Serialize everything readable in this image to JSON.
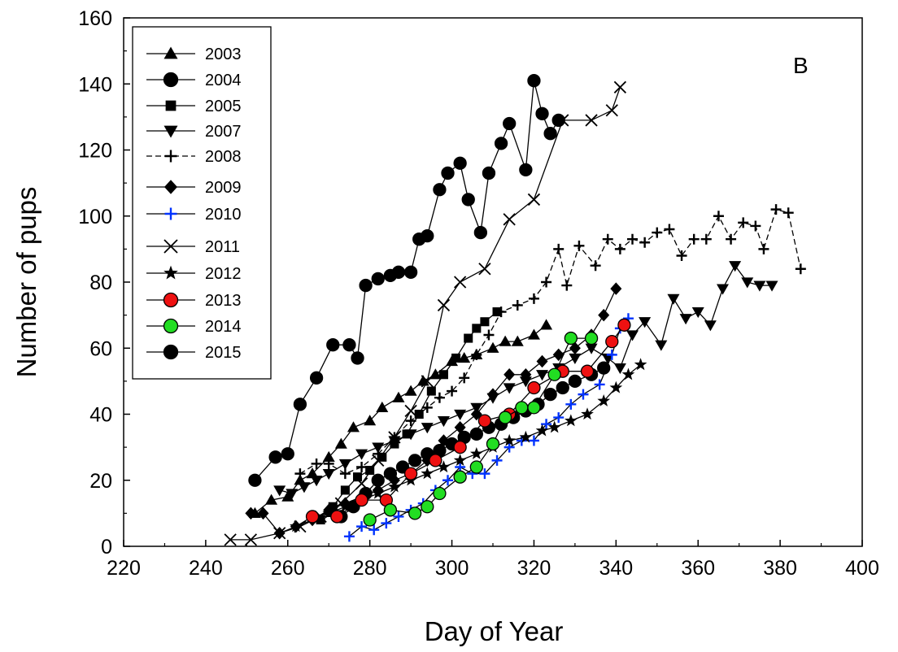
{
  "chart_data": {
    "type": "scatter",
    "title": "",
    "panel_label": "B",
    "xlabel": "Day of Year",
    "ylabel": "Number of pups",
    "xlim": [
      220,
      400
    ],
    "ylim": [
      0,
      160
    ],
    "x_ticks": [
      "220",
      "240",
      "260",
      "280",
      "300",
      "320",
      "340",
      "360",
      "380",
      "400"
    ],
    "y_ticks": [
      "0",
      "20",
      "40",
      "60",
      "80",
      "100",
      "120",
      "140",
      "160"
    ],
    "grid": false,
    "legend_position": "top-left",
    "series": [
      {
        "name": "2003",
        "marker": "triangle-up",
        "color": "#000000",
        "line": "solid",
        "points": [
          [
            252,
            10
          ],
          [
            256,
            14
          ],
          [
            260,
            15
          ],
          [
            263,
            20
          ],
          [
            266,
            22
          ],
          [
            270,
            27
          ],
          [
            273,
            31
          ],
          [
            276,
            36
          ],
          [
            280,
            38
          ],
          [
            283,
            42
          ],
          [
            287,
            45
          ],
          [
            290,
            47
          ],
          [
            293,
            50
          ],
          [
            296,
            52
          ],
          [
            300,
            56
          ],
          [
            303,
            57
          ],
          [
            306,
            58
          ],
          [
            310,
            60
          ],
          [
            313,
            62
          ],
          [
            316,
            62
          ],
          [
            320,
            64
          ],
          [
            323,
            67
          ]
        ]
      },
      {
        "name": "2004",
        "marker": "circle",
        "color": "#000000",
        "line": "solid",
        "points": [
          [
            273,
            9
          ],
          [
            276,
            12
          ],
          [
            279,
            16
          ],
          [
            282,
            20
          ],
          [
            285,
            22
          ],
          [
            288,
            24
          ],
          [
            291,
            26
          ],
          [
            294,
            28
          ],
          [
            297,
            29
          ],
          [
            300,
            31
          ],
          [
            303,
            33
          ],
          [
            306,
            34
          ],
          [
            309,
            36
          ],
          [
            312,
            37
          ],
          [
            315,
            39
          ],
          [
            318,
            41
          ],
          [
            321,
            43
          ],
          [
            324,
            46
          ],
          [
            327,
            48
          ],
          [
            330,
            50
          ],
          [
            334,
            52
          ],
          [
            337,
            54
          ]
        ]
      },
      {
        "name": "2005",
        "marker": "square",
        "color": "#000000",
        "line": "solid",
        "points": [
          [
            268,
            8
          ],
          [
            271,
            12
          ],
          [
            274,
            17
          ],
          [
            277,
            21
          ],
          [
            280,
            23
          ],
          [
            283,
            27
          ],
          [
            286,
            31
          ],
          [
            289,
            34
          ],
          [
            292,
            40
          ],
          [
            295,
            47
          ],
          [
            298,
            52
          ],
          [
            301,
            57
          ],
          [
            304,
            63
          ],
          [
            306,
            66
          ],
          [
            308,
            68
          ],
          [
            311,
            71
          ]
        ]
      },
      {
        "name": "2007",
        "marker": "triangle-down",
        "color": "#000000",
        "line": "solid",
        "points": [
          [
            258,
            17
          ],
          [
            261,
            16
          ],
          [
            264,
            18
          ],
          [
            267,
            20
          ],
          [
            270,
            22
          ],
          [
            274,
            25
          ],
          [
            278,
            28
          ],
          [
            282,
            30
          ],
          [
            286,
            32
          ],
          [
            290,
            34
          ],
          [
            294,
            36
          ],
          [
            298,
            38
          ],
          [
            302,
            40
          ],
          [
            306,
            42
          ],
          [
            310,
            45
          ],
          [
            314,
            48
          ],
          [
            318,
            50
          ],
          [
            322,
            52
          ],
          [
            326,
            54
          ],
          [
            330,
            57
          ],
          [
            334,
            60
          ],
          [
            338,
            57
          ],
          [
            341,
            54
          ],
          [
            344,
            64
          ],
          [
            347,
            68
          ],
          [
            351,
            61
          ],
          [
            354,
            75
          ],
          [
            357,
            69
          ],
          [
            360,
            71
          ],
          [
            363,
            67
          ],
          [
            366,
            78
          ],
          [
            369,
            85
          ],
          [
            372,
            80
          ],
          [
            375,
            79
          ],
          [
            378,
            79
          ]
        ]
      },
      {
        "name": "2008",
        "marker": "plus",
        "color": "#000000",
        "line": "dashed",
        "points": [
          [
            263,
            22
          ],
          [
            267,
            25
          ],
          [
            270,
            25
          ],
          [
            274,
            22
          ],
          [
            278,
            24
          ],
          [
            282,
            28
          ],
          [
            286,
            33
          ],
          [
            290,
            38
          ],
          [
            294,
            42
          ],
          [
            297,
            45
          ],
          [
            300,
            47
          ],
          [
            303,
            51
          ],
          [
            306,
            58
          ],
          [
            309,
            64
          ],
          [
            312,
            71
          ],
          [
            316,
            73
          ],
          [
            320,
            75
          ],
          [
            323,
            80
          ],
          [
            326,
            90
          ],
          [
            328,
            79
          ],
          [
            331,
            91
          ],
          [
            335,
            85
          ],
          [
            338,
            93
          ],
          [
            341,
            90
          ],
          [
            344,
            93
          ],
          [
            347,
            92
          ],
          [
            350,
            95
          ],
          [
            353,
            96
          ],
          [
            356,
            88
          ],
          [
            359,
            93
          ],
          [
            362,
            93
          ],
          [
            365,
            100
          ],
          [
            368,
            93
          ],
          [
            371,
            98
          ],
          [
            374,
            97
          ],
          [
            376,
            90
          ],
          [
            379,
            102
          ],
          [
            382,
            101
          ],
          [
            385,
            84
          ]
        ]
      },
      {
        "name": "2009",
        "marker": "diamond",
        "color": "#000000",
        "line": "solid",
        "points": [
          [
            251,
            10
          ],
          [
            254,
            10
          ],
          [
            258,
            4
          ],
          [
            262,
            6
          ],
          [
            266,
            8
          ],
          [
            270,
            11
          ],
          [
            274,
            13
          ],
          [
            278,
            15
          ],
          [
            282,
            17
          ],
          [
            286,
            20
          ],
          [
            290,
            22
          ],
          [
            294,
            26
          ],
          [
            298,
            32
          ],
          [
            302,
            36
          ],
          [
            306,
            40
          ],
          [
            310,
            46
          ],
          [
            314,
            52
          ],
          [
            318,
            52
          ],
          [
            322,
            56
          ],
          [
            326,
            58
          ],
          [
            330,
            60
          ],
          [
            334,
            64
          ],
          [
            337,
            70
          ],
          [
            340,
            78
          ]
        ]
      },
      {
        "name": "2010",
        "marker": "plus",
        "color": "#0033ff",
        "line": "solid",
        "points": [
          [
            275,
            3
          ],
          [
            278,
            6
          ],
          [
            281,
            5
          ],
          [
            284,
            7
          ],
          [
            287,
            9
          ],
          [
            290,
            11
          ],
          [
            293,
            13
          ],
          [
            296,
            17
          ],
          [
            299,
            20
          ],
          [
            302,
            24
          ],
          [
            305,
            22
          ],
          [
            308,
            22
          ],
          [
            311,
            26
          ],
          [
            314,
            30
          ],
          [
            317,
            32
          ],
          [
            320,
            32
          ],
          [
            323,
            37
          ],
          [
            326,
            39
          ],
          [
            329,
            43
          ],
          [
            332,
            46
          ],
          [
            336,
            49
          ],
          [
            339,
            58
          ],
          [
            341,
            66
          ],
          [
            343,
            69
          ]
        ]
      },
      {
        "name": "2011",
        "marker": "x",
        "color": "#000000",
        "line": "solid",
        "points": [
          [
            246,
            2
          ],
          [
            251,
            2
          ],
          [
            258,
            4
          ],
          [
            263,
            6
          ],
          [
            268,
            9
          ],
          [
            273,
            13
          ],
          [
            278,
            19
          ],
          [
            282,
            26
          ],
          [
            286,
            33
          ],
          [
            290,
            41
          ],
          [
            294,
            50
          ],
          [
            298,
            73
          ],
          [
            302,
            80
          ],
          [
            308,
            84
          ],
          [
            314,
            99
          ],
          [
            320,
            105
          ],
          [
            327,
            129
          ],
          [
            334,
            129
          ],
          [
            339,
            132
          ],
          [
            341,
            139
          ]
        ]
      },
      {
        "name": "2012",
        "marker": "star",
        "color": "#000000",
        "line": "solid",
        "points": [
          [
            262,
            6
          ],
          [
            266,
            9
          ],
          [
            270,
            10
          ],
          [
            274,
            12
          ],
          [
            278,
            14
          ],
          [
            282,
            16
          ],
          [
            286,
            18
          ],
          [
            290,
            20
          ],
          [
            294,
            22
          ],
          [
            298,
            24
          ],
          [
            302,
            26
          ],
          [
            306,
            28
          ],
          [
            310,
            30
          ],
          [
            314,
            32
          ],
          [
            318,
            33
          ],
          [
            322,
            35
          ],
          [
            325,
            36
          ],
          [
            329,
            38
          ],
          [
            333,
            40
          ],
          [
            337,
            44
          ],
          [
            340,
            48
          ],
          [
            343,
            52
          ],
          [
            346,
            55
          ]
        ]
      },
      {
        "name": "2013",
        "marker": "circle",
        "color": "#ee1111",
        "line": "solid",
        "points": [
          [
            266,
            9
          ],
          [
            272,
            9
          ],
          [
            278,
            14
          ],
          [
            284,
            14
          ],
          [
            290,
            22
          ],
          [
            296,
            26
          ],
          [
            302,
            30
          ],
          [
            308,
            38
          ],
          [
            314,
            40
          ],
          [
            320,
            48
          ],
          [
            327,
            53
          ],
          [
            333,
            53
          ],
          [
            339,
            62
          ],
          [
            342,
            67
          ]
        ]
      },
      {
        "name": "2014",
        "marker": "circle",
        "color": "#22dd22",
        "line": "solid",
        "points": [
          [
            280,
            8
          ],
          [
            285,
            11
          ],
          [
            291,
            10
          ],
          [
            294,
            12
          ],
          [
            297,
            16
          ],
          [
            302,
            21
          ],
          [
            306,
            24
          ],
          [
            310,
            31
          ],
          [
            313,
            39
          ],
          [
            317,
            42
          ],
          [
            320,
            42
          ],
          [
            325,
            52
          ],
          [
            329,
            63
          ],
          [
            334,
            63
          ]
        ]
      },
      {
        "name": "2015",
        "marker": "circle",
        "color": "#000000",
        "line": "solid",
        "points": [
          [
            252,
            20
          ],
          [
            257,
            27
          ],
          [
            260,
            28
          ],
          [
            263,
            43
          ],
          [
            267,
            51
          ],
          [
            271,
            61
          ],
          [
            275,
            61
          ],
          [
            277,
            57
          ],
          [
            279,
            79
          ],
          [
            282,
            81
          ],
          [
            285,
            82
          ],
          [
            287,
            83
          ],
          [
            290,
            83
          ],
          [
            292,
            93
          ],
          [
            294,
            94
          ],
          [
            297,
            108
          ],
          [
            299,
            113
          ],
          [
            302,
            116
          ],
          [
            304,
            105
          ],
          [
            307,
            95
          ],
          [
            309,
            113
          ],
          [
            312,
            122
          ],
          [
            314,
            128
          ],
          [
            318,
            114
          ],
          [
            320,
            141
          ],
          [
            322,
            131
          ],
          [
            324,
            125
          ],
          [
            326,
            129
          ]
        ]
      }
    ]
  }
}
